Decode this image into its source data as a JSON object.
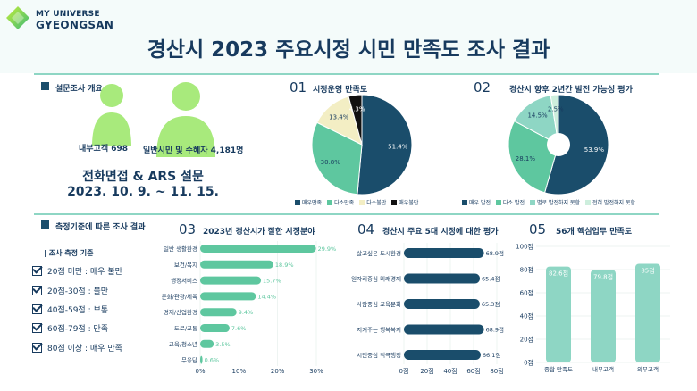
{
  "logo": {
    "line1": "MY UNIVERSE",
    "line2": "GYEONGSAN"
  },
  "title": "경산시 2023 주요시정 시민 만족도 조사 결과",
  "overview": {
    "title": "설문조사 개요",
    "group1": "내부고객 698",
    "group2": "일반시민 및 수혜자 4,181명",
    "method": "전화면접 & ARS 설문",
    "period": "2023. 10. 9. ~ 11. 15."
  },
  "criteria": {
    "title": "측정기준에 따른 조사 결과",
    "head": "| 조사 측정 기준",
    "items": [
      "20점 미만 : 매우 불만",
      "20점-30점 : 불만",
      "40점-59점 : 보통",
      "60점-79점 : 만족",
      "80점 이상 : 매우 만족"
    ]
  },
  "colors": {
    "navy": "#1a4d6b",
    "green": "#5ec79f",
    "cream": "#f3eec4",
    "black": "#111111",
    "lightgreen": "#cdeedd",
    "mint": "#8ed6c4"
  },
  "chart_data": [
    {
      "id": "01",
      "title": "시정운영 만족도",
      "type": "pie",
      "labels": [
        "매우만족",
        "다소만족",
        "다소불만",
        "매우불만"
      ],
      "values": [
        51.4,
        30.8,
        13.4,
        4.3
      ],
      "value_labels": [
        "51.4%",
        "30.8%",
        "13.4%",
        "4.3%"
      ],
      "colors": [
        "#1a4d6b",
        "#5ec79f",
        "#f3eec4",
        "#111111"
      ]
    },
    {
      "id": "02",
      "title": "경산시 향후 2년간 발전 가능성 평가",
      "type": "pie",
      "labels": [
        "매우 발전",
        "다소 발전",
        "별로 발전하지 못함",
        "전혀 발전하지 못함"
      ],
      "values": [
        53.9,
        28.1,
        14.5,
        2.5
      ],
      "value_labels": [
        "53.9%",
        "28.1%",
        "14.5%",
        "2.5%"
      ],
      "colors": [
        "#1a4d6b",
        "#5ec79f",
        "#8ed6c4",
        "#cdeedd"
      ]
    },
    {
      "id": "03",
      "title": "2023년 경산시가 잘한 시정분야",
      "type": "bar",
      "categories": [
        "일반 생활환경",
        "보건/복지",
        "행정서비스",
        "문화/관광/체육",
        "경제/산업환경",
        "도로/교통",
        "교육/청소년",
        "무응답"
      ],
      "values": [
        29.9,
        18.9,
        15.7,
        14.4,
        9.4,
        7.6,
        3.5,
        0.6
      ],
      "value_labels": [
        "29.9%",
        "18.9%",
        "15.7%",
        "14.4%",
        "9.4%",
        "7.6%",
        "3.5%",
        "0.6%"
      ],
      "xticks": [
        "0%",
        "10%",
        "20%",
        "30%"
      ],
      "xlim": [
        0,
        30
      ]
    },
    {
      "id": "04",
      "title": "경산시 주요 5대 시정에 대한 평가",
      "type": "bar",
      "categories": [
        "살고싶은 도시환경",
        "일자리중심 미래경제",
        "사람중심 교육문화",
        "지켜주는 행복복지",
        "시민중심 적극행정"
      ],
      "values": [
        68.9,
        65.4,
        65.3,
        68.9,
        66.1
      ],
      "value_labels": [
        "68.9점",
        "65.4점",
        "65.3점",
        "68.9점",
        "66.1점"
      ],
      "xticks": [
        "0점",
        "20점",
        "40점",
        "60점",
        "80점"
      ],
      "xlim": [
        0,
        80
      ]
    },
    {
      "id": "05",
      "title": "56개 핵심업무 만족도",
      "type": "bar",
      "categories": [
        "종합 만족도",
        "내부고객",
        "외부고객"
      ],
      "values": [
        82.6,
        79.8,
        85
      ],
      "value_labels": [
        "82.6점",
        "79.8점",
        "85점"
      ],
      "yticks": [
        "0점",
        "20점",
        "40점",
        "60점",
        "80점",
        "100점"
      ],
      "ylim": [
        0,
        100
      ]
    }
  ]
}
